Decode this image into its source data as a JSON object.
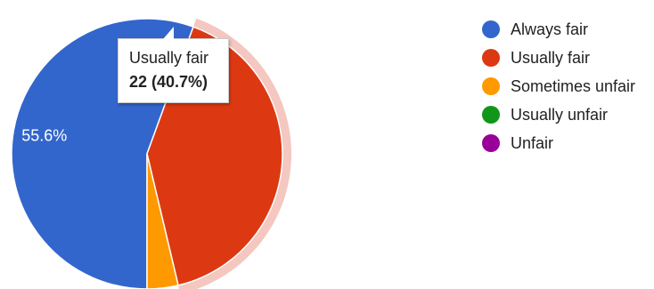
{
  "chart_data": {
    "type": "pie",
    "title": "",
    "categories": [
      "Always fair",
      "Usually fair",
      "Sometimes unfair",
      "Usually unfair",
      "Unfair"
    ],
    "values": [
      30,
      22,
      2,
      0,
      0
    ],
    "percentages": [
      55.6,
      40.7,
      3.7,
      0,
      0
    ],
    "colors": [
      "#3366cc",
      "#dc3912",
      "#ff9900",
      "#109618",
      "#990099"
    ],
    "slice_labels": [
      "55.6%",
      "",
      "",
      "",
      ""
    ],
    "highlighted_index": 1,
    "highlight_color": "#f4c7c0",
    "legend_position": "right",
    "tooltip": {
      "category": "Usually fair",
      "value_text": "22 (40.7%)"
    }
  }
}
